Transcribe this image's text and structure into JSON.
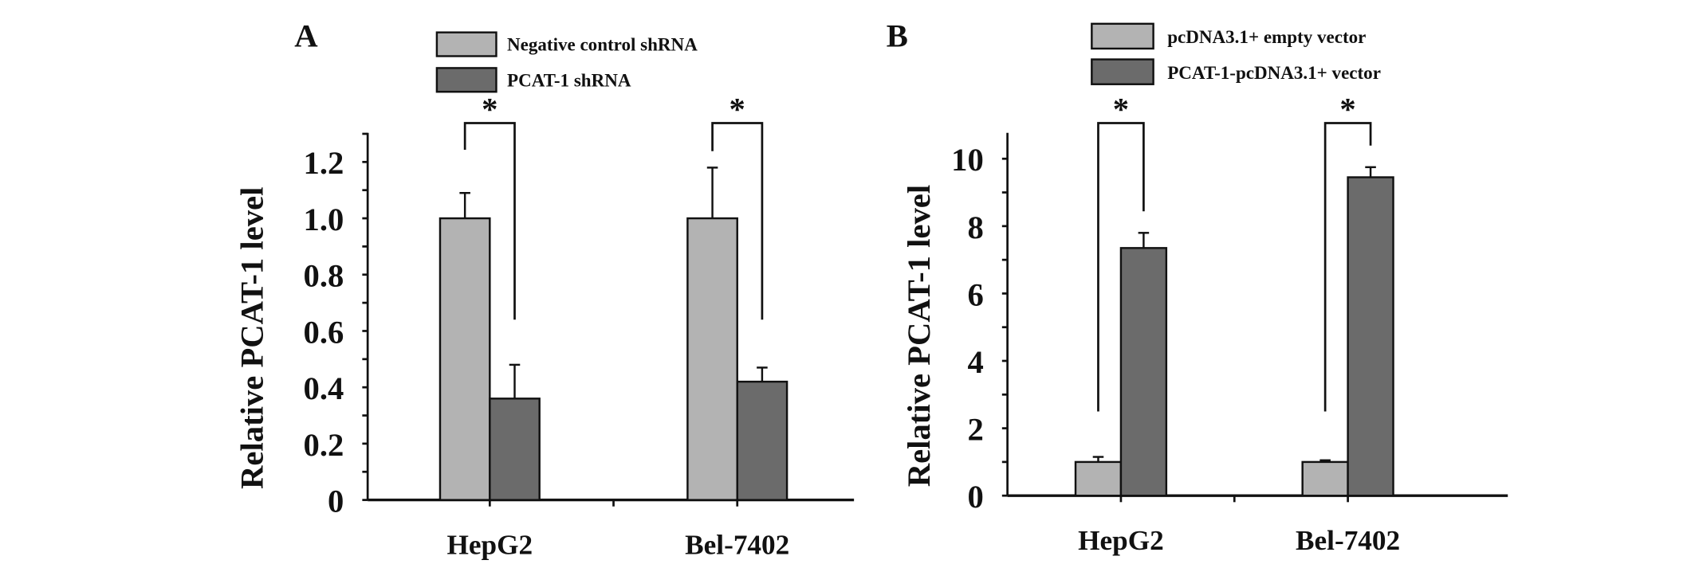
{
  "colors": {
    "light": "#b3b3b3",
    "dark": "#6b6b6b",
    "stroke": "#111111"
  },
  "chart_data": [
    {
      "type": "bar",
      "panel_label": "A",
      "title": "",
      "xlabel": "",
      "ylabel": "Relative PCAT-1 level",
      "categories": [
        "HepG2",
        "Bel-7402"
      ],
      "ylim": [
        0,
        1.3
      ],
      "yticks": [
        0,
        0.2,
        0.4,
        0.6,
        0.8,
        1.0,
        1.2
      ],
      "ytick_labels": [
        "0",
        "0.2",
        "0.4",
        "0.6",
        "0.8",
        "1.0",
        "1.2"
      ],
      "legend_position": "top-center",
      "series": [
        {
          "name": "Negative control shRNA",
          "color": "#b3b3b3",
          "values": [
            1.0,
            1.0
          ],
          "errors": [
            0.09,
            0.18
          ]
        },
        {
          "name": "PCAT-1 shRNA",
          "color": "#6b6b6b",
          "values": [
            0.36,
            0.42
          ],
          "errors": [
            0.12,
            0.05
          ]
        }
      ],
      "significance": [
        {
          "category": "HepG2",
          "label": "*"
        },
        {
          "category": "Bel-7402",
          "label": "*"
        }
      ]
    },
    {
      "type": "bar",
      "panel_label": "B",
      "title": "",
      "xlabel": "",
      "ylabel": "Relative PCAT-1 level",
      "categories": [
        "HepG2",
        "Bel-7402"
      ],
      "ylim": [
        0,
        10.8
      ],
      "yticks": [
        0,
        2,
        4,
        6,
        8,
        10
      ],
      "ytick_labels": [
        "0",
        "2",
        "4",
        "6",
        "8",
        "10"
      ],
      "legend_position": "top-center",
      "series": [
        {
          "name": "pcDNA3.1+ empty vector",
          "color": "#b3b3b3",
          "values": [
            1.0,
            1.0
          ],
          "errors": [
            0.15,
            0.05
          ]
        },
        {
          "name": "PCAT-1-pcDNA3.1+ vector",
          "color": "#6b6b6b",
          "values": [
            7.35,
            9.45
          ],
          "errors": [
            0.45,
            0.3
          ]
        }
      ],
      "significance": [
        {
          "category": "HepG2",
          "label": "*"
        },
        {
          "category": "Bel-7402",
          "label": "*"
        }
      ]
    }
  ]
}
